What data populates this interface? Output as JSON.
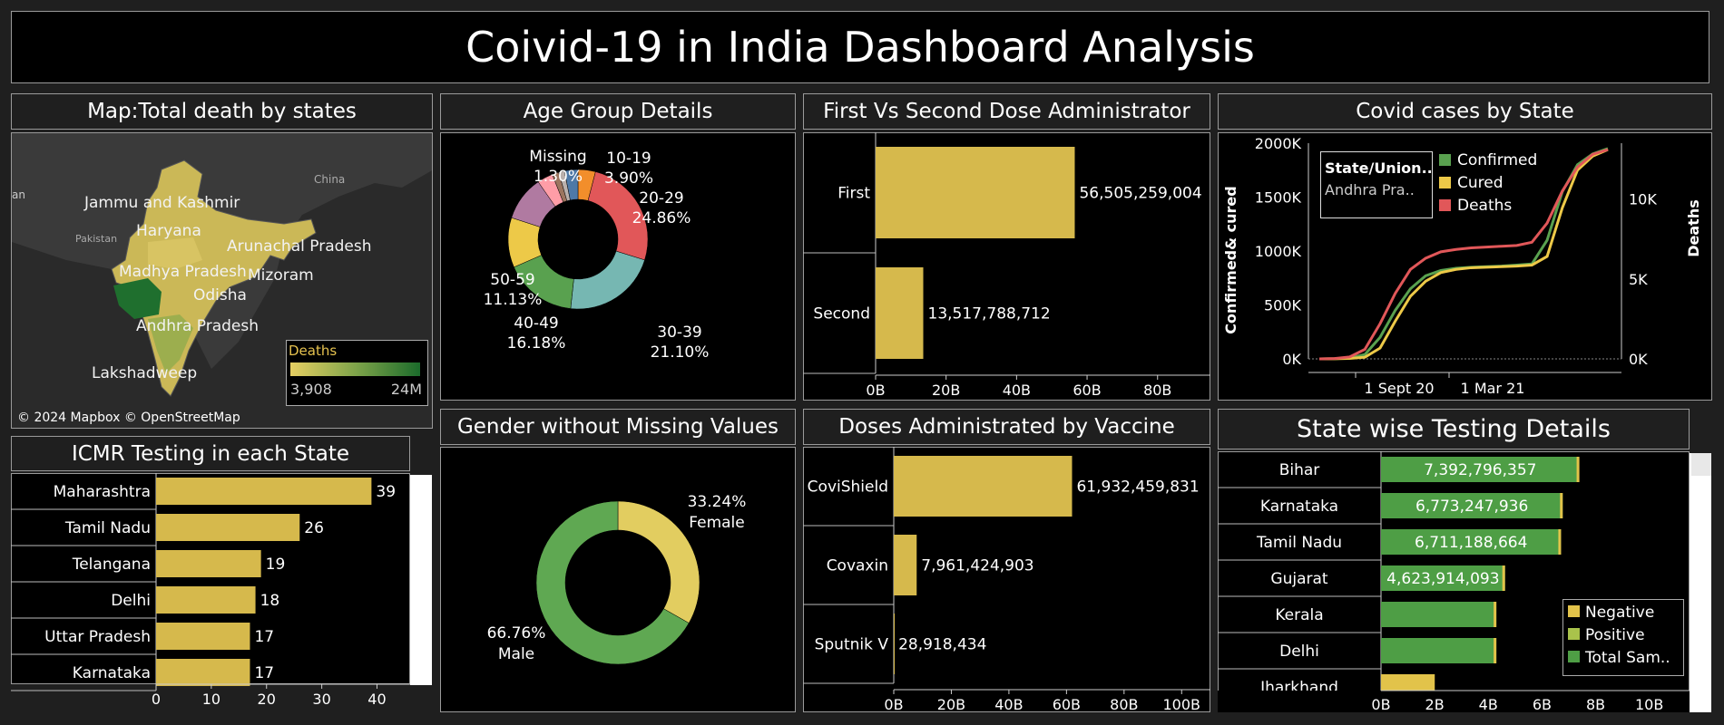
{
  "dashboard": {
    "title": "Coivid-19 in India Dashboard Analysis"
  },
  "colors": {
    "gold": "#d6b94c",
    "green": "#4e9e45",
    "red": "#e0474c",
    "lightgreen": "#8cb85c",
    "bg": "#000000",
    "panel": "#1f1f1f"
  },
  "map": {
    "title": "Map:Total death by states",
    "attribution": "© 2024 Mapbox © OpenStreetMap",
    "labels": {
      "jk": "Jammu and Kashmir",
      "haryana": "Haryana",
      "arunachal": "Arunachal Pradesh",
      "mp": "Madhya Pradesh",
      "mizoram": "Mizoram",
      "odisha": "Odisha",
      "ap": "Andhra Pradesh",
      "lakshadweep": "Lakshadweep",
      "china": "China",
      "pakistan": "Pakistan",
      "an": "an"
    },
    "legend": {
      "title": "Deaths",
      "min": "3,908",
      "max": "24M"
    }
  },
  "icmr": {
    "title": "ICMR Testing in each State",
    "chart_data": {
      "type": "bar",
      "categories": [
        "Maharashtra",
        "Tamil Nadu",
        "Telangana",
        "Delhi",
        "Uttar Pradesh",
        "Karnataka"
      ],
      "values": [
        39,
        26,
        19,
        18,
        17,
        17
      ],
      "xticks": [
        "0",
        "10",
        "20",
        "30",
        "40"
      ],
      "xlim": [
        0,
        46
      ]
    }
  },
  "age": {
    "title": "Age Group Details",
    "chart_data": {
      "type": "pie",
      "slices": [
        {
          "label": "10-19",
          "value": 3.9,
          "pct": "3.90%",
          "color": "#f28e2b"
        },
        {
          "label": "20-29",
          "value": 24.86,
          "pct": "24.86%",
          "color": "#e15759"
        },
        {
          "label": "30-39",
          "value": 21.1,
          "pct": "21.10%",
          "color": "#76b7b2"
        },
        {
          "label": "40-49",
          "value": 16.18,
          "pct": "16.18%",
          "color": "#59a14f"
        },
        {
          "label": "50-59",
          "value": 11.13,
          "pct": "11.13%",
          "color": "#edc948"
        },
        {
          "label": "",
          "value": 10.0,
          "pct": "",
          "color": "#b07aa1"
        },
        {
          "label": "",
          "value": 3.5,
          "pct": "",
          "color": "#ff9da7"
        },
        {
          "label": "",
          "value": 1.5,
          "pct": "",
          "color": "#9c755f"
        },
        {
          "label": "Missing",
          "value": 1.3,
          "pct": "1.30%",
          "color": "#bab0ac"
        },
        {
          "label": "",
          "value": 3.0,
          "pct": "",
          "color": "#4e79a7"
        }
      ]
    }
  },
  "gender": {
    "title": "Gender without Missing Values",
    "chart_data": {
      "type": "pie",
      "slices": [
        {
          "label": "Female",
          "value": 33.24,
          "pct": "33.24%",
          "color": "#e2cd60"
        },
        {
          "label": "Male",
          "value": 66.76,
          "pct": "66.76%",
          "color": "#5fa852"
        }
      ]
    }
  },
  "dose": {
    "title": "First Vs Second Dose Administrator",
    "chart_data": {
      "type": "bar",
      "categories": [
        "First",
        "Second"
      ],
      "values": [
        56505259004,
        13517788712
      ],
      "labels": [
        "56,505,259,004",
        "13,517,788,712"
      ],
      "xticks": [
        "0B",
        "20B",
        "40B",
        "60B",
        "80B"
      ],
      "xlim": [
        0,
        95000000000
      ]
    }
  },
  "vaccine": {
    "title": "Doses Administrated by Vaccine",
    "chart_data": {
      "type": "bar",
      "categories": [
        "CoviShield",
        "Covaxin",
        "Sputnik V"
      ],
      "values": [
        61932459831,
        7961424903,
        28918434
      ],
      "labels": [
        "61,932,459,831",
        "7,961,424,903",
        "28,918,434"
      ],
      "xticks": [
        "0B",
        "20B",
        "40B",
        "60B",
        "80B",
        "100B"
      ],
      "xlim": [
        0,
        110000000000
      ]
    }
  },
  "cases": {
    "title": "Covid cases by State",
    "chart_data": {
      "type": "line",
      "ylabel_left": "Confirmed& cured",
      "ylabel_right": "Deaths",
      "yticks_left": [
        "0K",
        "500K",
        "1000K",
        "1500K",
        "2000K"
      ],
      "ylim_left": [
        0,
        2000000
      ],
      "yticks_right": [
        "0K",
        "5K",
        "10K"
      ],
      "ylim_right": [
        0,
        13500
      ],
      "xticks": [
        "1 Sept 20",
        "1 Mar 21"
      ],
      "legend": [
        {
          "name": "Confirmed",
          "color": "#59a14f"
        },
        {
          "name": "Cured",
          "color": "#edc948"
        },
        {
          "name": "Deaths",
          "color": "#e15759"
        }
      ],
      "filter_title": "State/Union..",
      "filter_value": "Andhra Pra..",
      "series": [
        {
          "name": "Confirmed",
          "color": "#59a14f",
          "values": [
            0,
            2000,
            8000,
            40000,
            200000,
            450000,
            650000,
            770000,
            820000,
            840000,
            850000,
            855000,
            860000,
            870000,
            880000,
            1100000,
            1550000,
            1800000,
            1900000,
            1950000
          ]
        },
        {
          "name": "Cured",
          "color": "#edc948",
          "values": [
            0,
            1000,
            4000,
            15000,
            100000,
            350000,
            580000,
            720000,
            800000,
            830000,
            845000,
            850000,
            855000,
            860000,
            870000,
            950000,
            1400000,
            1750000,
            1880000,
            1940000
          ]
        },
        {
          "name": "Deaths",
          "color": "#e15759",
          "values": [
            0,
            20,
            120,
            600,
            2200,
            4100,
            5600,
            6300,
            6700,
            6850,
            6950,
            7000,
            7050,
            7100,
            7300,
            8500,
            10500,
            12000,
            12800,
            13100
          ]
        }
      ]
    }
  },
  "testing": {
    "title": "State wise Testing Details",
    "chart_data": {
      "type": "bar",
      "categories": [
        "Bihar",
        "Karnataka",
        "Tamil Nadu",
        "Gujarat",
        "Kerala",
        "Delhi",
        "Jharkhand"
      ],
      "total": [
        7392796357,
        6773247936,
        6711188664,
        4623914093,
        4300000000,
        4300000000,
        2000000000
      ],
      "labels": [
        "7,392,796,357",
        "6,773,247,936",
        "6,711,188,664",
        "4,623,914,093",
        "",
        "",
        ""
      ],
      "xticks": [
        "0B",
        "2B",
        "4B",
        "6B",
        "8B",
        "10B"
      ],
      "xlim": [
        0,
        11500000000
      ],
      "legend": [
        {
          "name": "Negative",
          "color": "#e2c34a"
        },
        {
          "name": "Positive",
          "color": "#a9c34b"
        },
        {
          "name": "Total Sam..",
          "color": "#4e9e45"
        }
      ]
    }
  }
}
